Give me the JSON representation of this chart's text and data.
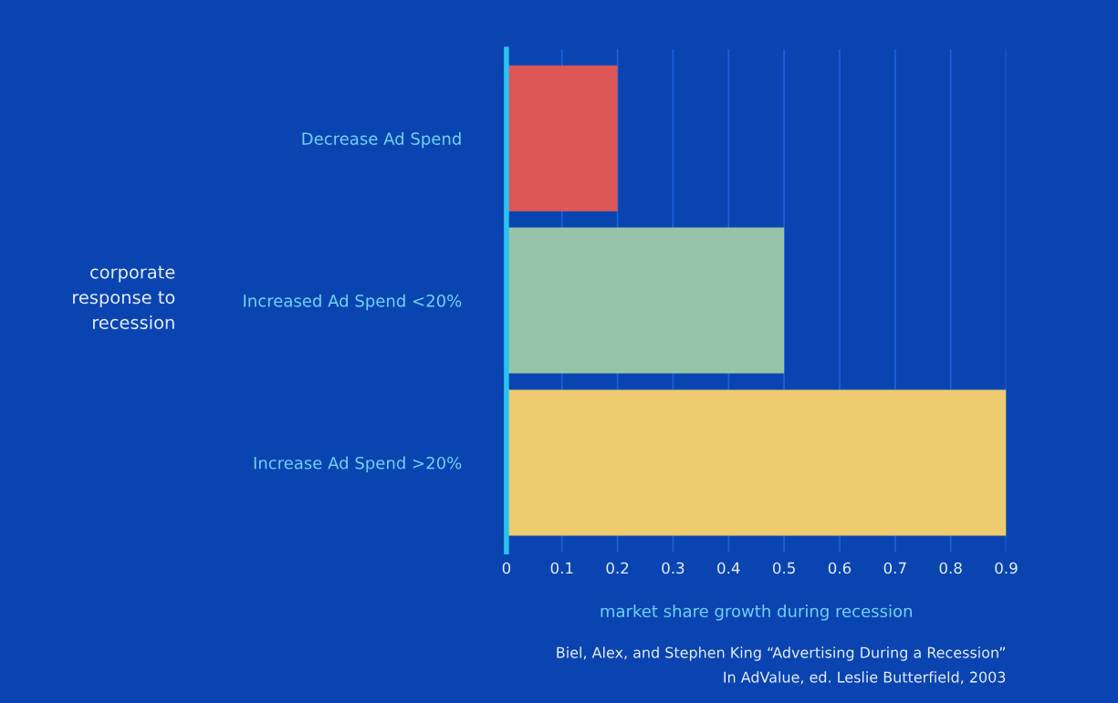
{
  "chart_data": {
    "type": "bar",
    "orientation": "horizontal",
    "categories": [
      "Decrease Ad Spend",
      "Increased Ad Spend <20%",
      "Increase Ad Spend >20%"
    ],
    "colors": [
      "#dd5757",
      "#96c3a9",
      "#eecb6e"
    ],
    "values": [
      0.2,
      0.5,
      0.9
    ],
    "xlim": [
      0,
      0.9
    ],
    "xticks": [
      0,
      0.1,
      0.2,
      0.3,
      0.4,
      0.5,
      0.6,
      0.7,
      0.8,
      0.9
    ],
    "xlabel": "market share growth during recession",
    "ylabel": "corporate response to recession",
    "grid": "x",
    "legend": false,
    "annotations": [
      "Biel, Alex, and Stephen King “Advertising During a Recession”",
      "In AdValue, ed. Leslie Butterfield, 2003"
    ]
  }
}
